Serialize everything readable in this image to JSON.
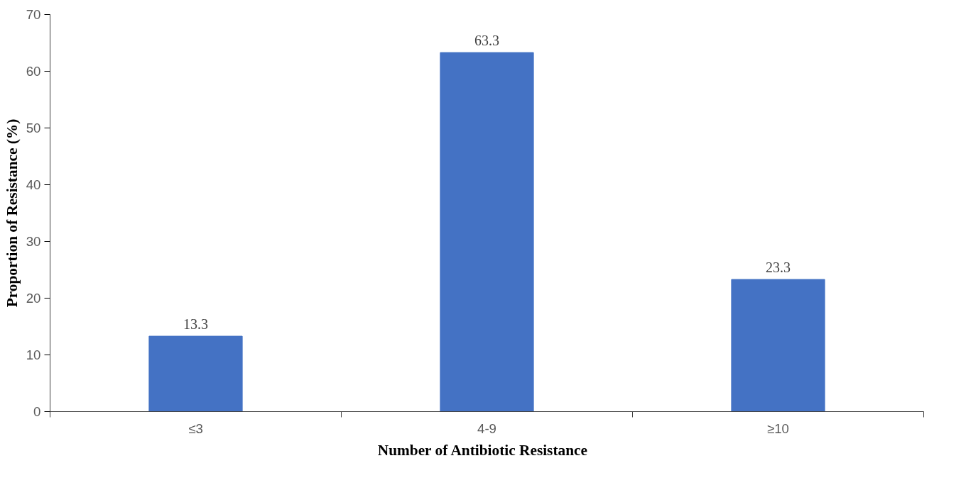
{
  "chart_data": {
    "type": "bar",
    "xlabel": "Number  of  Antibiotic Resistance",
    "ylabel": "Proportion of Resistance (%)",
    "categories": [
      "≤3",
      "4-9",
      "≥10"
    ],
    "values": [
      13.3,
      63.3,
      23.3
    ],
    "color": "#4472c4",
    "ylim": [
      0,
      70
    ],
    "yticks": [
      0,
      10,
      20,
      30,
      40,
      50,
      60,
      70
    ],
    "grid": false,
    "data_labels": true
  }
}
